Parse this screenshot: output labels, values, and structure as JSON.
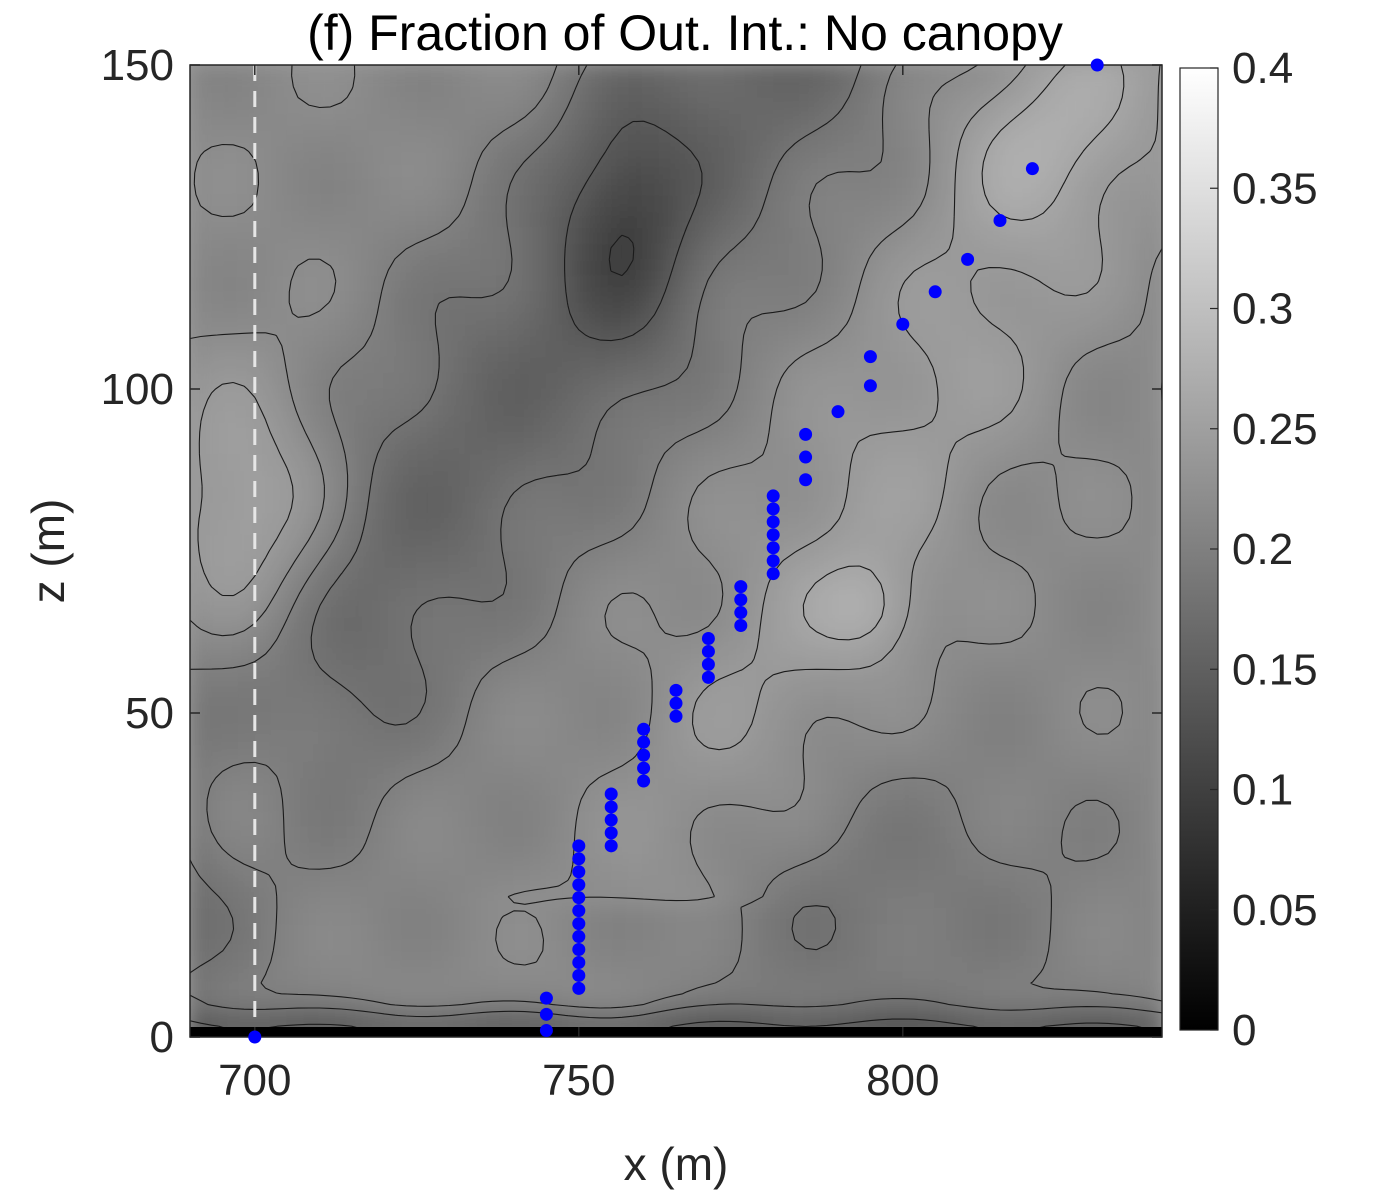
{
  "chart_data": {
    "type": "contour",
    "title": "(f) Fraction of Out. Int.: No canopy",
    "xlabel": "x (m)",
    "ylabel": "z (m)",
    "xlim": [
      690,
      840
    ],
    "ylim": [
      0,
      150
    ],
    "xticks": [
      700,
      750,
      800
    ],
    "yticks": [
      0,
      50,
      100,
      150
    ],
    "colorbar": {
      "range": [
        0,
        0.4
      ],
      "colormap": "gray",
      "ticks": [
        "0",
        "0.05",
        "0.1",
        "0.15",
        "0.2",
        "0.25",
        "0.3",
        "0.35",
        "0.4"
      ]
    },
    "reference_line": {
      "x": 700,
      "style": "dashed",
      "color": "#e6e6e6"
    },
    "points": {
      "color": "#0000ff",
      "x": [
        700,
        745,
        745,
        745,
        750,
        750,
        750,
        750,
        750,
        750,
        750,
        750,
        750,
        750,
        750,
        750,
        755,
        755,
        755,
        755,
        755,
        760,
        760,
        760,
        760,
        760,
        765,
        765,
        765,
        770,
        770,
        770,
        770,
        775,
        775,
        775,
        775,
        780,
        780,
        780,
        780,
        780,
        780,
        780,
        785,
        785,
        785,
        790,
        795,
        795,
        800,
        805,
        810,
        815,
        820,
        830
      ],
      "z": [
        0,
        1,
        3.5,
        6,
        7.5,
        9.5,
        11.5,
        13.5,
        15.5,
        17.5,
        19.5,
        21.5,
        23.5,
        25.5,
        27.5,
        29.5,
        29.5,
        31.5,
        33.5,
        35.5,
        37.5,
        39.5,
        41.5,
        43.5,
        45.5,
        47.5,
        49.5,
        51.5,
        53.5,
        55.5,
        57.5,
        59.5,
        61.5,
        63.5,
        65.5,
        67.5,
        69.5,
        71.5,
        73.5,
        75.5,
        77.5,
        79.5,
        81.5,
        83.5,
        86,
        89.5,
        93,
        96.5,
        100.5,
        105,
        110,
        115,
        120,
        126,
        134,
        150
      ]
    },
    "field_levels": [
      0.06,
      0.1,
      0.14,
      0.18,
      0.2,
      0.22,
      0.24,
      0.26,
      0.28
    ]
  }
}
